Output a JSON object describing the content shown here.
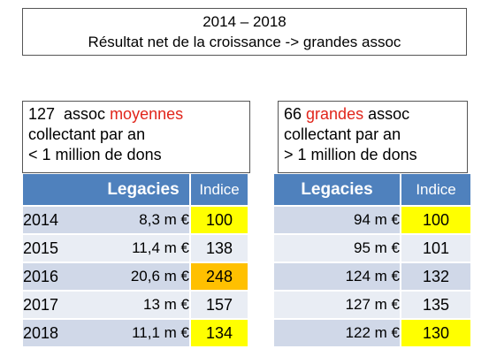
{
  "title": {
    "line1": "2014 – 2018",
    "line2": "Résultat net de la croissance -> grandes assoc"
  },
  "colors": {
    "header_blue": "#4f81bd",
    "row_dark": "#d0d8e8",
    "row_light": "#e9edf4",
    "highlight_yellow": "#ffff00",
    "highlight_orange": "#ffc000",
    "red_text": "#e1251b"
  },
  "left": {
    "desc": {
      "pre": "127  assoc ",
      "red": "moyennes",
      "line2": "collectant par an",
      "line3": "< 1 million de dons"
    },
    "headers": {
      "legacies": "Legacies",
      "indice": "Indice"
    },
    "rows": [
      {
        "year": "2014",
        "legacies": "8,3 m €",
        "indice": "100",
        "highlight": "yellow"
      },
      {
        "year": "2015",
        "legacies": "11,4 m €",
        "indice": "138",
        "highlight": ""
      },
      {
        "year": "2016",
        "legacies": "20,6 m €",
        "indice": "248",
        "highlight": "orange"
      },
      {
        "year": "2017",
        "legacies": "13 m €",
        "indice": "157",
        "highlight": ""
      },
      {
        "year": "2018",
        "legacies": "11,1 m €",
        "indice": "134",
        "highlight": "yellow"
      }
    ]
  },
  "right": {
    "desc": {
      "pre": "66 ",
      "red": "grandes",
      "post": " assoc",
      "line2": "collectant par an",
      "line3": "> 1 million de dons"
    },
    "headers": {
      "legacies": "Legacies",
      "indice": "Indice"
    },
    "rows": [
      {
        "legacies": "94 m €",
        "indice": "100",
        "highlight": "yellow"
      },
      {
        "legacies": "95 m €",
        "indice": "101",
        "highlight": ""
      },
      {
        "legacies": "124 m €",
        "indice": "132",
        "highlight": ""
      },
      {
        "legacies": "127 m €",
        "indice": "135",
        "highlight": ""
      },
      {
        "legacies": "122 m €",
        "indice": "130",
        "highlight": "yellow"
      }
    ]
  }
}
